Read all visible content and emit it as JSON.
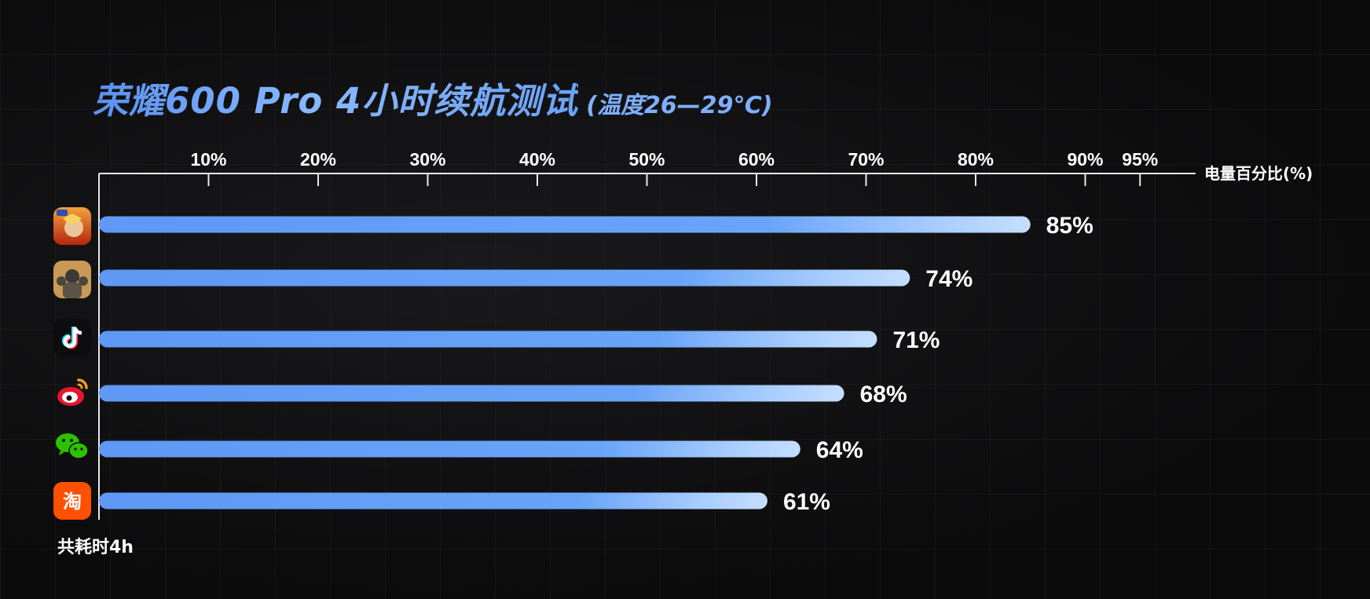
{
  "title": {
    "main": "荣耀600 Pro 4小时续航测试",
    "sub": "(温度26—29℃)"
  },
  "footer": "共耗时4h",
  "colors": {
    "bar_start": "#5f98f5",
    "bar_end": "#c4deff",
    "title": "#6e9ff5",
    "background": "#0b0b0c",
    "text": "#ffffff"
  },
  "chart_data": {
    "type": "bar",
    "orientation": "horizontal",
    "xlabel": "电量百分比(%)",
    "ylabel": "",
    "xlim": [
      0,
      100
    ],
    "tick_values": [
      10,
      20,
      30,
      40,
      50,
      60,
      70,
      80,
      90,
      95
    ],
    "tick_labels": [
      "10%",
      "20%",
      "30%",
      "40%",
      "50%",
      "60%",
      "70%",
      "80%",
      "90%",
      "95%"
    ],
    "grid": false,
    "categories": [
      "game-app-1",
      "game-app-2",
      "tiktok",
      "weibo",
      "wechat",
      "taobao"
    ],
    "category_icons": [
      "hero-game-icon",
      "pubg-game-icon",
      "tiktok-icon",
      "weibo-icon",
      "wechat-icon",
      "taobao-icon"
    ],
    "values": [
      85,
      74,
      71,
      68,
      64,
      61
    ],
    "value_labels": [
      "85%",
      "74%",
      "71%",
      "68%",
      "64%",
      "61%"
    ]
  }
}
